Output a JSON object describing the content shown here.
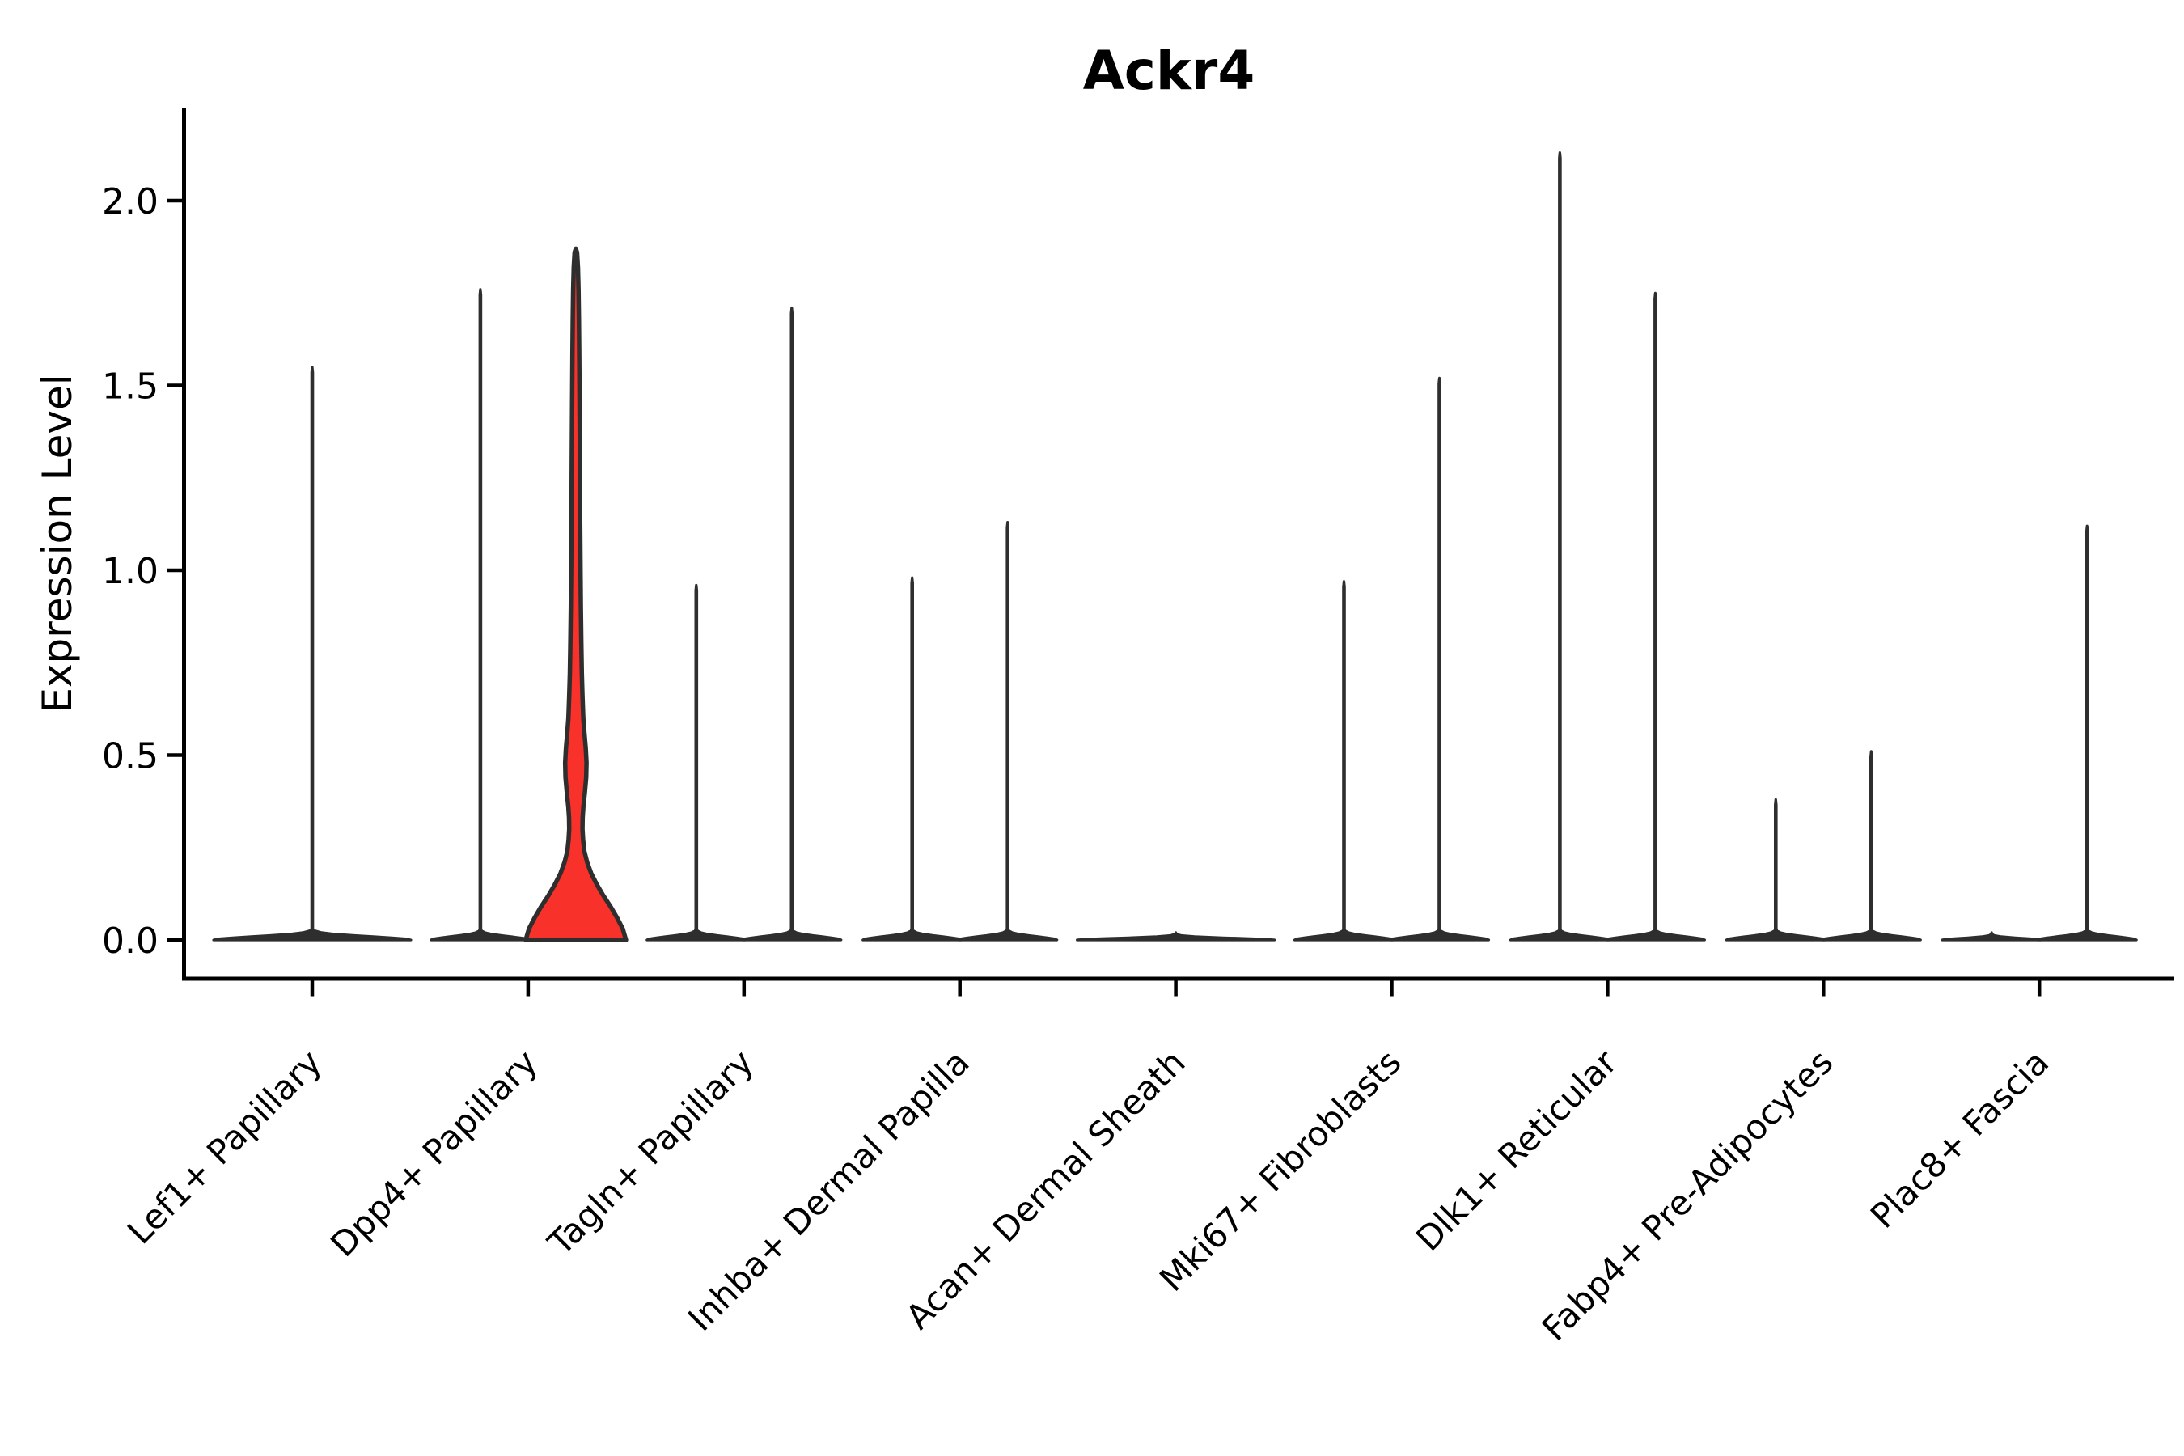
{
  "chart_data": {
    "type": "violin",
    "title": "Ackr4",
    "ylabel": "Expression Level",
    "ytick_labels": [
      "0.0",
      "0.5",
      "1.0",
      "1.5",
      "2.0"
    ],
    "ytick_values": [
      0.0,
      0.5,
      1.0,
      1.5,
      2.0
    ],
    "ylim": [
      -0.1,
      2.25
    ],
    "x_tick_rotation_deg": 45,
    "grid": "off",
    "legend": "none",
    "categories": [
      "Lef1+ Papillary",
      "Dpp4+ Papillary",
      "Tagln+ Papillary",
      "Inhba+ Dermal Papilla",
      "Acan+ Dermal Sheath",
      "Mki67+ Fibroblasts",
      "Dlk1+ Reticular",
      "Fabp4+ Pre-Adipocytes",
      "Plac8+ Fascia"
    ],
    "violins": [
      {
        "category_index": 0,
        "category": "Lef1+ Papillary",
        "position": "center",
        "max_expression": 1.55,
        "highlighted": false
      },
      {
        "category_index": 1,
        "category": "Dpp4+ Papillary",
        "position": "left",
        "max_expression": 1.76,
        "highlighted": false
      },
      {
        "category_index": 1,
        "category": "Dpp4+ Papillary",
        "position": "right",
        "max_expression": 1.87,
        "highlighted": true
      },
      {
        "category_index": 2,
        "category": "Tagln+ Papillary",
        "position": "left",
        "max_expression": 0.96,
        "highlighted": false
      },
      {
        "category_index": 2,
        "category": "Tagln+ Papillary",
        "position": "right",
        "max_expression": 1.71,
        "highlighted": false
      },
      {
        "category_index": 3,
        "category": "Inhba+ Dermal Papilla",
        "position": "left",
        "max_expression": 0.98,
        "highlighted": false
      },
      {
        "category_index": 3,
        "category": "Inhba+ Dermal Papilla",
        "position": "right",
        "max_expression": 1.13,
        "highlighted": false
      },
      {
        "category_index": 4,
        "category": "Acan+ Dermal Sheath",
        "position": "center",
        "max_expression": 0.0,
        "highlighted": false
      },
      {
        "category_index": 5,
        "category": "Mki67+ Fibroblasts",
        "position": "left",
        "max_expression": 0.97,
        "highlighted": false
      },
      {
        "category_index": 5,
        "category": "Mki67+ Fibroblasts",
        "position": "right",
        "max_expression": 1.52,
        "highlighted": false
      },
      {
        "category_index": 6,
        "category": "Dlk1+ Reticular",
        "position": "left",
        "max_expression": 2.13,
        "highlighted": false
      },
      {
        "category_index": 6,
        "category": "Dlk1+ Reticular",
        "position": "right",
        "max_expression": 1.75,
        "highlighted": false
      },
      {
        "category_index": 7,
        "category": "Fabp4+ Pre-Adipocytes",
        "position": "left",
        "max_expression": 0.38,
        "highlighted": false
      },
      {
        "category_index": 7,
        "category": "Fabp4+ Pre-Adipocytes",
        "position": "right",
        "max_expression": 0.51,
        "highlighted": false
      },
      {
        "category_index": 8,
        "category": "Plac8+ Fascia",
        "position": "left",
        "max_expression": 0.0,
        "highlighted": false
      },
      {
        "category_index": 8,
        "category": "Plac8+ Fascia",
        "position": "right",
        "max_expression": 1.12,
        "highlighted": false
      }
    ],
    "highlighted_violin_profile": [
      [
        0.0,
        62.0
      ],
      [
        0.03,
        58.0
      ],
      [
        0.06,
        51.0
      ],
      [
        0.09,
        43.0
      ],
      [
        0.12,
        34.0
      ],
      [
        0.15,
        26.0
      ],
      [
        0.18,
        19.0
      ],
      [
        0.21,
        14.0
      ],
      [
        0.24,
        10.5
      ],
      [
        0.27,
        9.0
      ],
      [
        0.3,
        8.2
      ],
      [
        0.33,
        8.4
      ],
      [
        0.36,
        9.3
      ],
      [
        0.4,
        11.2
      ],
      [
        0.44,
        12.8
      ],
      [
        0.48,
        13.2
      ],
      [
        0.52,
        12.2
      ],
      [
        0.56,
        10.6
      ],
      [
        0.6,
        9.2
      ],
      [
        0.66,
        8.2
      ],
      [
        0.72,
        7.4
      ],
      [
        0.8,
        6.8
      ],
      [
        0.9,
        6.2
      ],
      [
        1.0,
        5.8
      ],
      [
        1.15,
        5.3
      ],
      [
        1.3,
        5.0
      ],
      [
        1.45,
        4.6
      ],
      [
        1.58,
        4.2
      ],
      [
        1.68,
        3.8
      ],
      [
        1.76,
        3.3
      ],
      [
        1.82,
        2.6
      ],
      [
        1.86,
        1.5
      ],
      [
        1.87,
        0.0
      ]
    ],
    "colors": {
      "highlight_fill": "#f8312a",
      "violin_outline": "#2e2e2e",
      "axis": "#000000",
      "text": "#000000",
      "background": "#ffffff"
    }
  }
}
